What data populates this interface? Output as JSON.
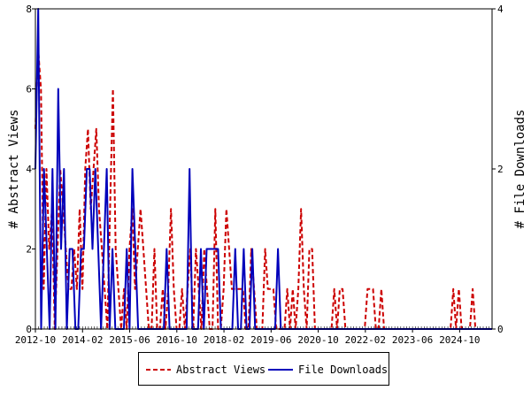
{
  "chart_data": {
    "type": "line",
    "xlabel": "",
    "ylabel": "# Abstract Views",
    "ylabel_right": "# File Downloads",
    "ylim": [
      0,
      8
    ],
    "ylim_right": [
      0,
      4
    ],
    "yticks": [
      0,
      2,
      4,
      6,
      8
    ],
    "yticks_right": [
      0,
      2,
      4
    ],
    "xtick_labels": [
      "2012-10",
      "2014-02",
      "2015-06",
      "2016-10",
      "2018-02",
      "2019-06",
      "2020-10",
      "2022-02",
      "2023-06",
      "2024-10"
    ],
    "x_start": "2012-10",
    "x_end": "2025-09",
    "grid": false,
    "legend_position": "bottom",
    "series": [
      {
        "name": "Abstract Views",
        "axis": "left",
        "color": "#cc0000",
        "style": "dashed",
        "values": [
          5,
          7,
          6,
          1,
          4,
          2,
          3,
          0,
          2,
          4,
          3,
          2,
          1,
          1,
          2,
          1,
          3,
          1,
          4,
          5,
          3,
          4,
          5,
          3,
          2,
          1,
          0,
          3,
          6,
          2,
          1,
          0,
          1,
          0,
          2,
          3,
          1,
          2,
          3,
          2,
          1,
          0,
          0,
          2,
          0,
          0,
          1,
          0,
          1,
          3,
          1,
          0,
          0,
          1,
          0,
          1,
          2,
          0,
          2,
          1,
          0,
          2,
          1,
          0,
          0,
          3,
          0,
          0,
          1,
          3,
          2,
          1,
          1,
          1,
          1,
          1,
          0,
          0,
          2,
          1,
          0,
          0,
          0,
          2,
          1,
          1,
          1,
          0,
          0,
          0,
          0,
          1,
          0,
          1,
          0,
          1,
          3,
          1,
          0,
          2,
          2,
          0,
          0,
          0,
          0,
          0,
          0,
          0,
          1,
          0,
          1,
          1,
          0,
          0,
          0,
          0,
          0,
          0,
          0,
          0,
          1,
          1,
          1,
          0,
          0,
          1,
          0,
          0,
          0,
          0,
          0,
          0,
          0,
          0,
          0,
          0,
          0,
          0,
          0,
          0,
          0,
          0,
          0,
          0,
          0,
          0,
          0,
          0,
          0,
          0,
          0,
          1,
          0,
          1,
          0,
          0,
          0,
          0,
          1,
          0,
          0,
          0,
          0,
          0,
          0,
          0
        ]
      },
      {
        "name": "File Downloads",
        "axis": "right",
        "color": "#0000bb",
        "style": "solid",
        "values": [
          2,
          4,
          0,
          2,
          1,
          0,
          2,
          0,
          3,
          1,
          2,
          0,
          1,
          1,
          0,
          0,
          1,
          1,
          2,
          2,
          1,
          2,
          1,
          0,
          1,
          2,
          0,
          1,
          0,
          0,
          0,
          0,
          1,
          0,
          2,
          1,
          0,
          0,
          0,
          0,
          0,
          0,
          0,
          0,
          0,
          0,
          1,
          0,
          0,
          0,
          0,
          0,
          0,
          0,
          2,
          0,
          0,
          0,
          1,
          0,
          1,
          1,
          1,
          1,
          1,
          0,
          0,
          0,
          0,
          0,
          1,
          0,
          0,
          1,
          0,
          0,
          1,
          0,
          0,
          0,
          0,
          0,
          0,
          0,
          0,
          1,
          0,
          0,
          0,
          0,
          0,
          0,
          0,
          0,
          0,
          0,
          0,
          0,
          0,
          0,
          0,
          0,
          0,
          0,
          0,
          0,
          0,
          0,
          0,
          0,
          0,
          0,
          0,
          0,
          0,
          0,
          0,
          0,
          0,
          0,
          0,
          0,
          0,
          0,
          0,
          0,
          0,
          0,
          0,
          0,
          0,
          0,
          0,
          0,
          0,
          0,
          0,
          0,
          0,
          0,
          0,
          0,
          0,
          0,
          0,
          0,
          0,
          0,
          0,
          0,
          0,
          0,
          0,
          0,
          0,
          0,
          0,
          0,
          0,
          0,
          0
        ]
      }
    ]
  },
  "legend": {
    "abstract_views": "Abstract Views",
    "file_downloads": "File Downloads"
  }
}
